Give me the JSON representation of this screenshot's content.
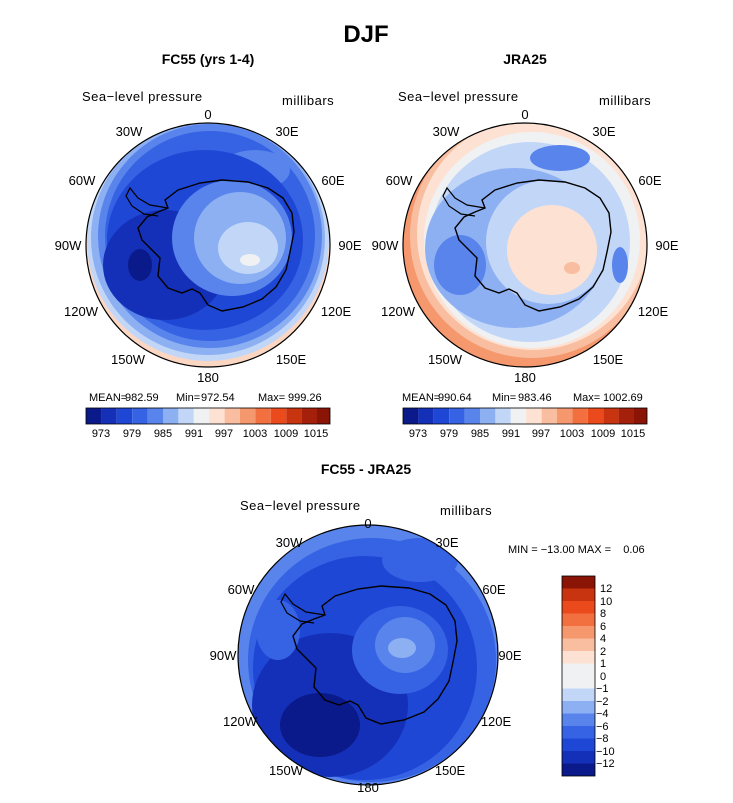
{
  "main_title": "DJF",
  "colors": {
    "d12": "#0a1a8a",
    "d10": "#1530b8",
    "d8": "#1f47d6",
    "d6": "#3563e4",
    "d4": "#5884ec",
    "d2": "#8db0f3",
    "d1": "#c2d7f8",
    "z": "#f0f1f3",
    "p1": "#fde2d3",
    "p2": "#f9bda0",
    "p4": "#f6986e",
    "p6": "#f27040",
    "p8": "#ea4a1c",
    "p10": "#c93410",
    "p12": "#8a1405",
    "ocean_blue": "#3e6fe6",
    "ice_light": "#cde0fb",
    "antarctic_warm": "#fbd6c2"
  },
  "panels": [
    {
      "title": "FC55 (yrs 1-4)",
      "variable": "Sea−level pressure",
      "units": "millibars",
      "lon_labels": [
        "0",
        "30E",
        "60E",
        "90E",
        "120E",
        "150E",
        "180",
        "150W",
        "120W",
        "90W",
        "60W",
        "30W"
      ],
      "stats": {
        "mean_label": "MEAN=",
        "mean": "982.59",
        "min_label": "Min=",
        "min": "972.54",
        "max_label": "Max=",
        "max": "999.26"
      },
      "colorbar_ticks": [
        "973",
        "979",
        "985",
        "991",
        "997",
        "1003",
        "1009",
        "1015"
      ]
    },
    {
      "title": "JRA25",
      "variable": "Sea−level pressure",
      "units": "millibars",
      "lon_labels": [
        "0",
        "30E",
        "60E",
        "90E",
        "120E",
        "150E",
        "180",
        "150W",
        "120W",
        "90W",
        "60W",
        "30W"
      ],
      "stats": {
        "mean_label": "MEAN=",
        "mean": "990.64",
        "min_label": "Min=",
        "min": "983.46",
        "max_label": "Max=",
        "max": "1002.69"
      },
      "colorbar_ticks": [
        "973",
        "979",
        "985",
        "991",
        "997",
        "1003",
        "1009",
        "1015"
      ]
    }
  ],
  "diff_panel": {
    "title": "FC55 - JRA25",
    "variable": "Sea−level pressure",
    "units": "millibars",
    "lon_labels": [
      "0",
      "30E",
      "60E",
      "90E",
      "120E",
      "150E",
      "180",
      "150W",
      "120W",
      "90W",
      "60W",
      "30W"
    ],
    "minmax_text": "MIN = −13.00 MAX =    0.06",
    "colorbar_ticks": [
      "12",
      "10",
      "8",
      "6",
      "4",
      "2",
      "1",
      "0",
      "−1",
      "−2",
      "−4",
      "−6",
      "−8",
      "−10",
      "−12"
    ]
  }
}
